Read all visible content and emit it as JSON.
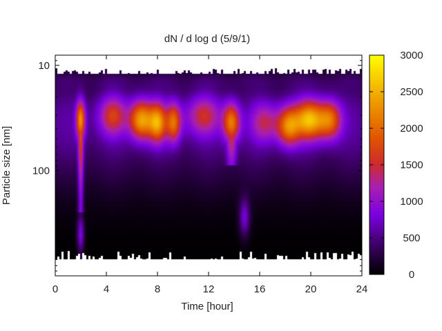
{
  "chart_data": {
    "type": "heatmap",
    "title": "dN / d log d (5/9/1)",
    "xlabel": "Time [hour]",
    "ylabel": "Particle size [nm]",
    "xlim": [
      0,
      24
    ],
    "ylim": [
      8,
      1000
    ],
    "y_scale": "log",
    "y_axis_inverted": true,
    "x_ticks": [
      "0",
      "4",
      "8",
      "12",
      "16",
      "20",
      "24"
    ],
    "y_ticks": [
      "10",
      "100"
    ],
    "colorbar": {
      "range": [
        0,
        3000
      ],
      "ticks": [
        "0",
        "500",
        "1000",
        "1500",
        "2000",
        "2500",
        "3000"
      ],
      "colormap": "black-purple-red-orange-yellow"
    },
    "data_extent": {
      "size_min_nm": 12,
      "size_max_nm": 700
    },
    "bands": [
      {
        "time": 2.0,
        "width": 0.25,
        "peak_size_nm": 33,
        "value": 2000,
        "high_tail_nm": 250
      },
      {
        "time": 2.0,
        "width": 0.2,
        "peak_size_nm": 400,
        "value": 900
      },
      {
        "time": 6.7,
        "width": 0.6,
        "peak_size_nm": 33,
        "value": 2300
      },
      {
        "time": 8.0,
        "width": 0.5,
        "peak_size_nm": 35,
        "value": 1800
      },
      {
        "time": 9.3,
        "width": 0.4,
        "peak_size_nm": 35,
        "value": 1600
      },
      {
        "time": 13.8,
        "width": 0.45,
        "peak_size_nm": 35,
        "value": 2000,
        "high_tail_nm": 90
      },
      {
        "time": 14.8,
        "width": 0.3,
        "peak_size_nm": 280,
        "value": 800
      },
      {
        "time": 18.2,
        "width": 0.6,
        "peak_size_nm": 38,
        "value": 1800
      },
      {
        "time": 20.0,
        "width": 0.9,
        "peak_size_nm": 33,
        "value": 2100
      },
      {
        "time": 21.5,
        "width": 0.6,
        "peak_size_nm": 33,
        "value": 1600
      },
      {
        "time": 4.5,
        "width": 0.8,
        "peak_size_nm": 30,
        "value": 1100
      },
      {
        "time": 11.5,
        "width": 1.0,
        "peak_size_nm": 30,
        "value": 1000
      },
      {
        "time": 16.5,
        "width": 0.8,
        "peak_size_nm": 35,
        "value": 900
      }
    ]
  }
}
